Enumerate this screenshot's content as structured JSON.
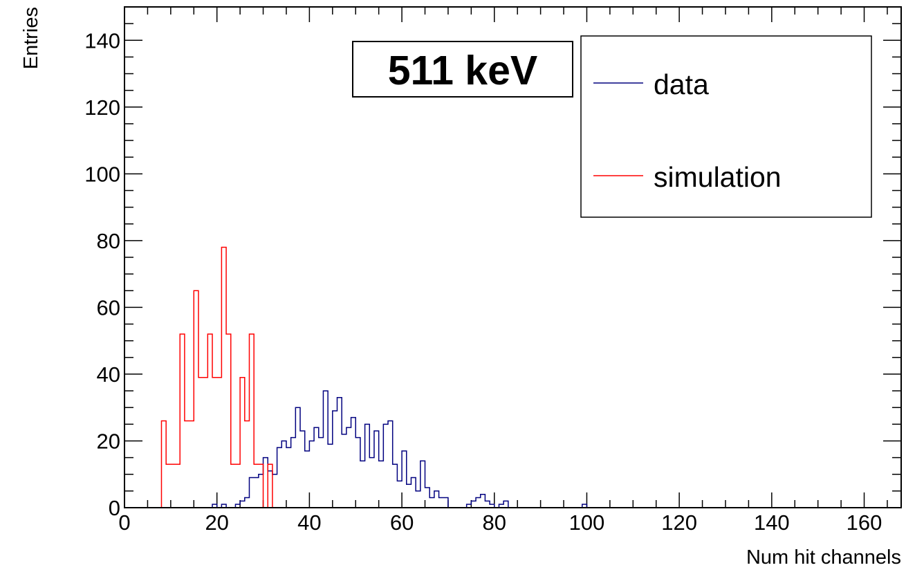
{
  "chart_data": {
    "type": "step-histogram",
    "xlabel": "Num hit channels",
    "ylabel": "Entries",
    "xlim": [
      0,
      168
    ],
    "ylim": [
      0,
      150
    ],
    "bin_width": 1,
    "x_ticks": [
      0,
      20,
      40,
      60,
      80,
      100,
      120,
      140,
      160
    ],
    "y_ticks": [
      0,
      20,
      40,
      60,
      80,
      100,
      120,
      140
    ],
    "grid": false,
    "legend_position": "top-right",
    "annotation": "511 keV",
    "colors": {
      "data": "#00007f",
      "simulation": "#ff0000"
    },
    "series": [
      {
        "name": "data",
        "bins": [
          [
            19,
            1
          ],
          [
            21,
            1
          ],
          [
            24,
            1
          ],
          [
            25,
            2
          ],
          [
            26,
            3
          ],
          [
            27,
            9
          ],
          [
            28,
            9
          ],
          [
            29,
            10
          ],
          [
            30,
            15
          ],
          [
            31,
            11
          ],
          [
            32,
            10
          ],
          [
            33,
            18
          ],
          [
            34,
            20
          ],
          [
            35,
            18
          ],
          [
            36,
            21
          ],
          [
            37,
            30
          ],
          [
            38,
            23
          ],
          [
            39,
            17
          ],
          [
            40,
            20
          ],
          [
            41,
            24
          ],
          [
            42,
            21
          ],
          [
            43,
            35
          ],
          [
            44,
            19
          ],
          [
            45,
            29
          ],
          [
            46,
            33
          ],
          [
            47,
            22
          ],
          [
            48,
            24
          ],
          [
            49,
            27
          ],
          [
            50,
            21
          ],
          [
            51,
            14
          ],
          [
            52,
            25
          ],
          [
            53,
            15
          ],
          [
            54,
            23
          ],
          [
            55,
            14
          ],
          [
            56,
            25
          ],
          [
            57,
            26
          ],
          [
            58,
            13
          ],
          [
            59,
            8
          ],
          [
            60,
            17
          ],
          [
            61,
            7
          ],
          [
            62,
            9
          ],
          [
            63,
            5
          ],
          [
            64,
            14
          ],
          [
            65,
            6
          ],
          [
            66,
            3
          ],
          [
            67,
            5
          ],
          [
            68,
            3
          ],
          [
            69,
            3
          ],
          [
            74,
            1
          ],
          [
            75,
            2
          ],
          [
            76,
            3
          ],
          [
            77,
            4
          ],
          [
            78,
            2
          ],
          [
            79,
            1
          ],
          [
            81,
            1
          ],
          [
            82,
            2
          ],
          [
            99,
            1
          ]
        ]
      },
      {
        "name": "simulation",
        "bins": [
          [
            8,
            26
          ],
          [
            9,
            13
          ],
          [
            10,
            13
          ],
          [
            11,
            13
          ],
          [
            12,
            52
          ],
          [
            13,
            26
          ],
          [
            14,
            26
          ],
          [
            15,
            65
          ],
          [
            16,
            39
          ],
          [
            17,
            39
          ],
          [
            18,
            52
          ],
          [
            19,
            39
          ],
          [
            20,
            39
          ],
          [
            21,
            78
          ],
          [
            22,
            52
          ],
          [
            23,
            13
          ],
          [
            24,
            13
          ],
          [
            25,
            39
          ],
          [
            26,
            26
          ],
          [
            27,
            52
          ],
          [
            28,
            13
          ],
          [
            29,
            13
          ],
          [
            31,
            13
          ]
        ]
      }
    ]
  }
}
